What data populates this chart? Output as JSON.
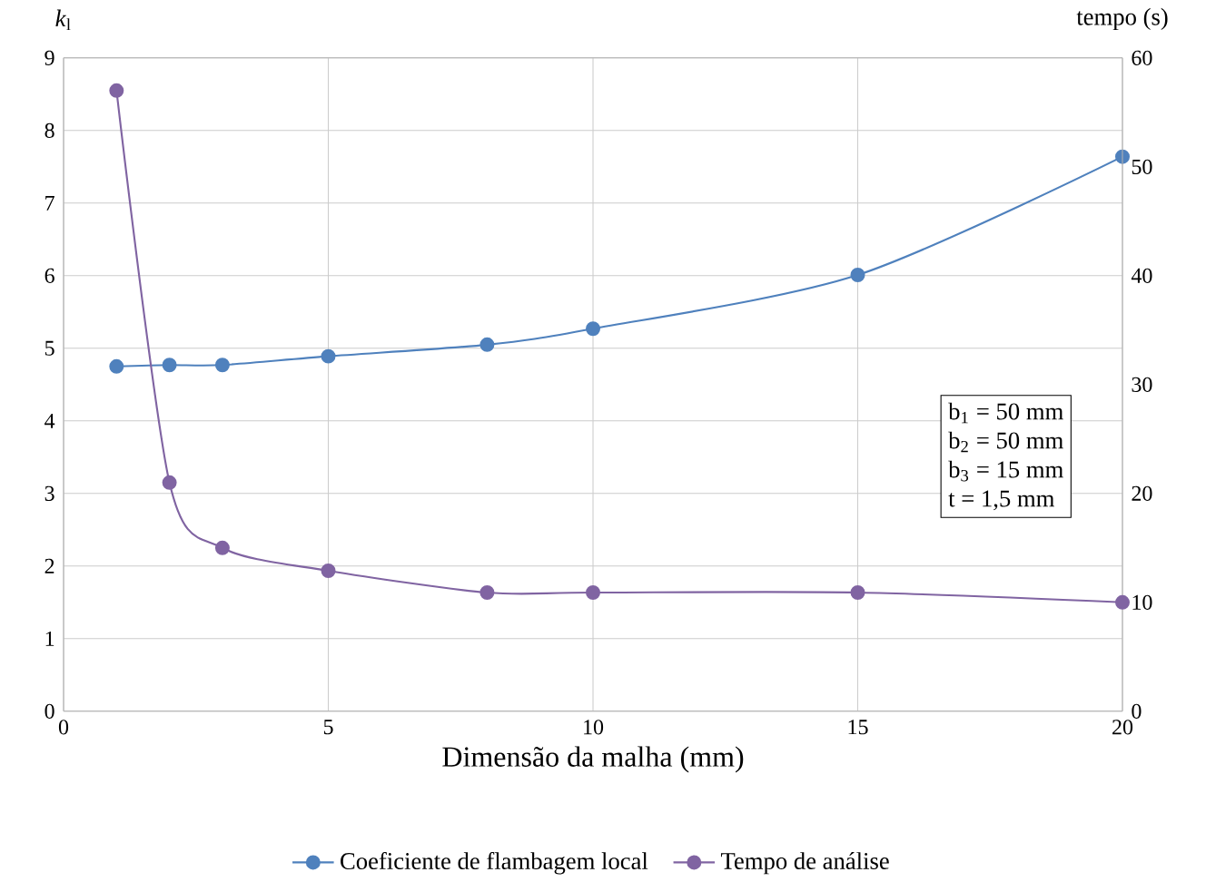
{
  "chart_data": {
    "type": "line",
    "xlabel": "Dimensão da malha (mm)",
    "ylabel": "*k*$_{l}$",
    "y2label": "tempo (s)",
    "xlim": [
      0,
      20
    ],
    "xticks": [
      0,
      5,
      10,
      15,
      20
    ],
    "ylim": [
      0,
      9
    ],
    "yticks": [
      0,
      1,
      2,
      3,
      4,
      5,
      6,
      7,
      8,
      9
    ],
    "y2lim": [
      0,
      60
    ],
    "y2ticks": [
      0,
      10,
      20,
      30,
      40,
      50,
      60
    ],
    "grid": true,
    "legend": "bottom",
    "marker": "circle",
    "line_style": "solid",
    "annotations": [
      "b$_{1}$ = 50 mm",
      "b$_{2}$ = 50 mm",
      "b$_{3}$ = 15 mm",
      "t = 1,5 mm"
    ],
    "series": [
      {
        "name": "Coeficiente de flambagem local",
        "color": "#4f81bd",
        "x": [
          1,
          2,
          3,
          5,
          8,
          10,
          15,
          20
        ],
        "values": [
          4.75,
          4.77,
          4.77,
          4.89,
          5.05,
          5.27,
          6.01,
          7.64
        ]
      },
      {
        "name": "Tempo de análise",
        "color": "#8064a2",
        "axis": "y2",
        "x": [
          1,
          2,
          3,
          5,
          8,
          10,
          15,
          20
        ],
        "values": [
          57.0,
          21.0,
          15.0,
          12.9,
          10.9,
          10.9,
          10.9,
          10.0
        ]
      }
    ]
  }
}
